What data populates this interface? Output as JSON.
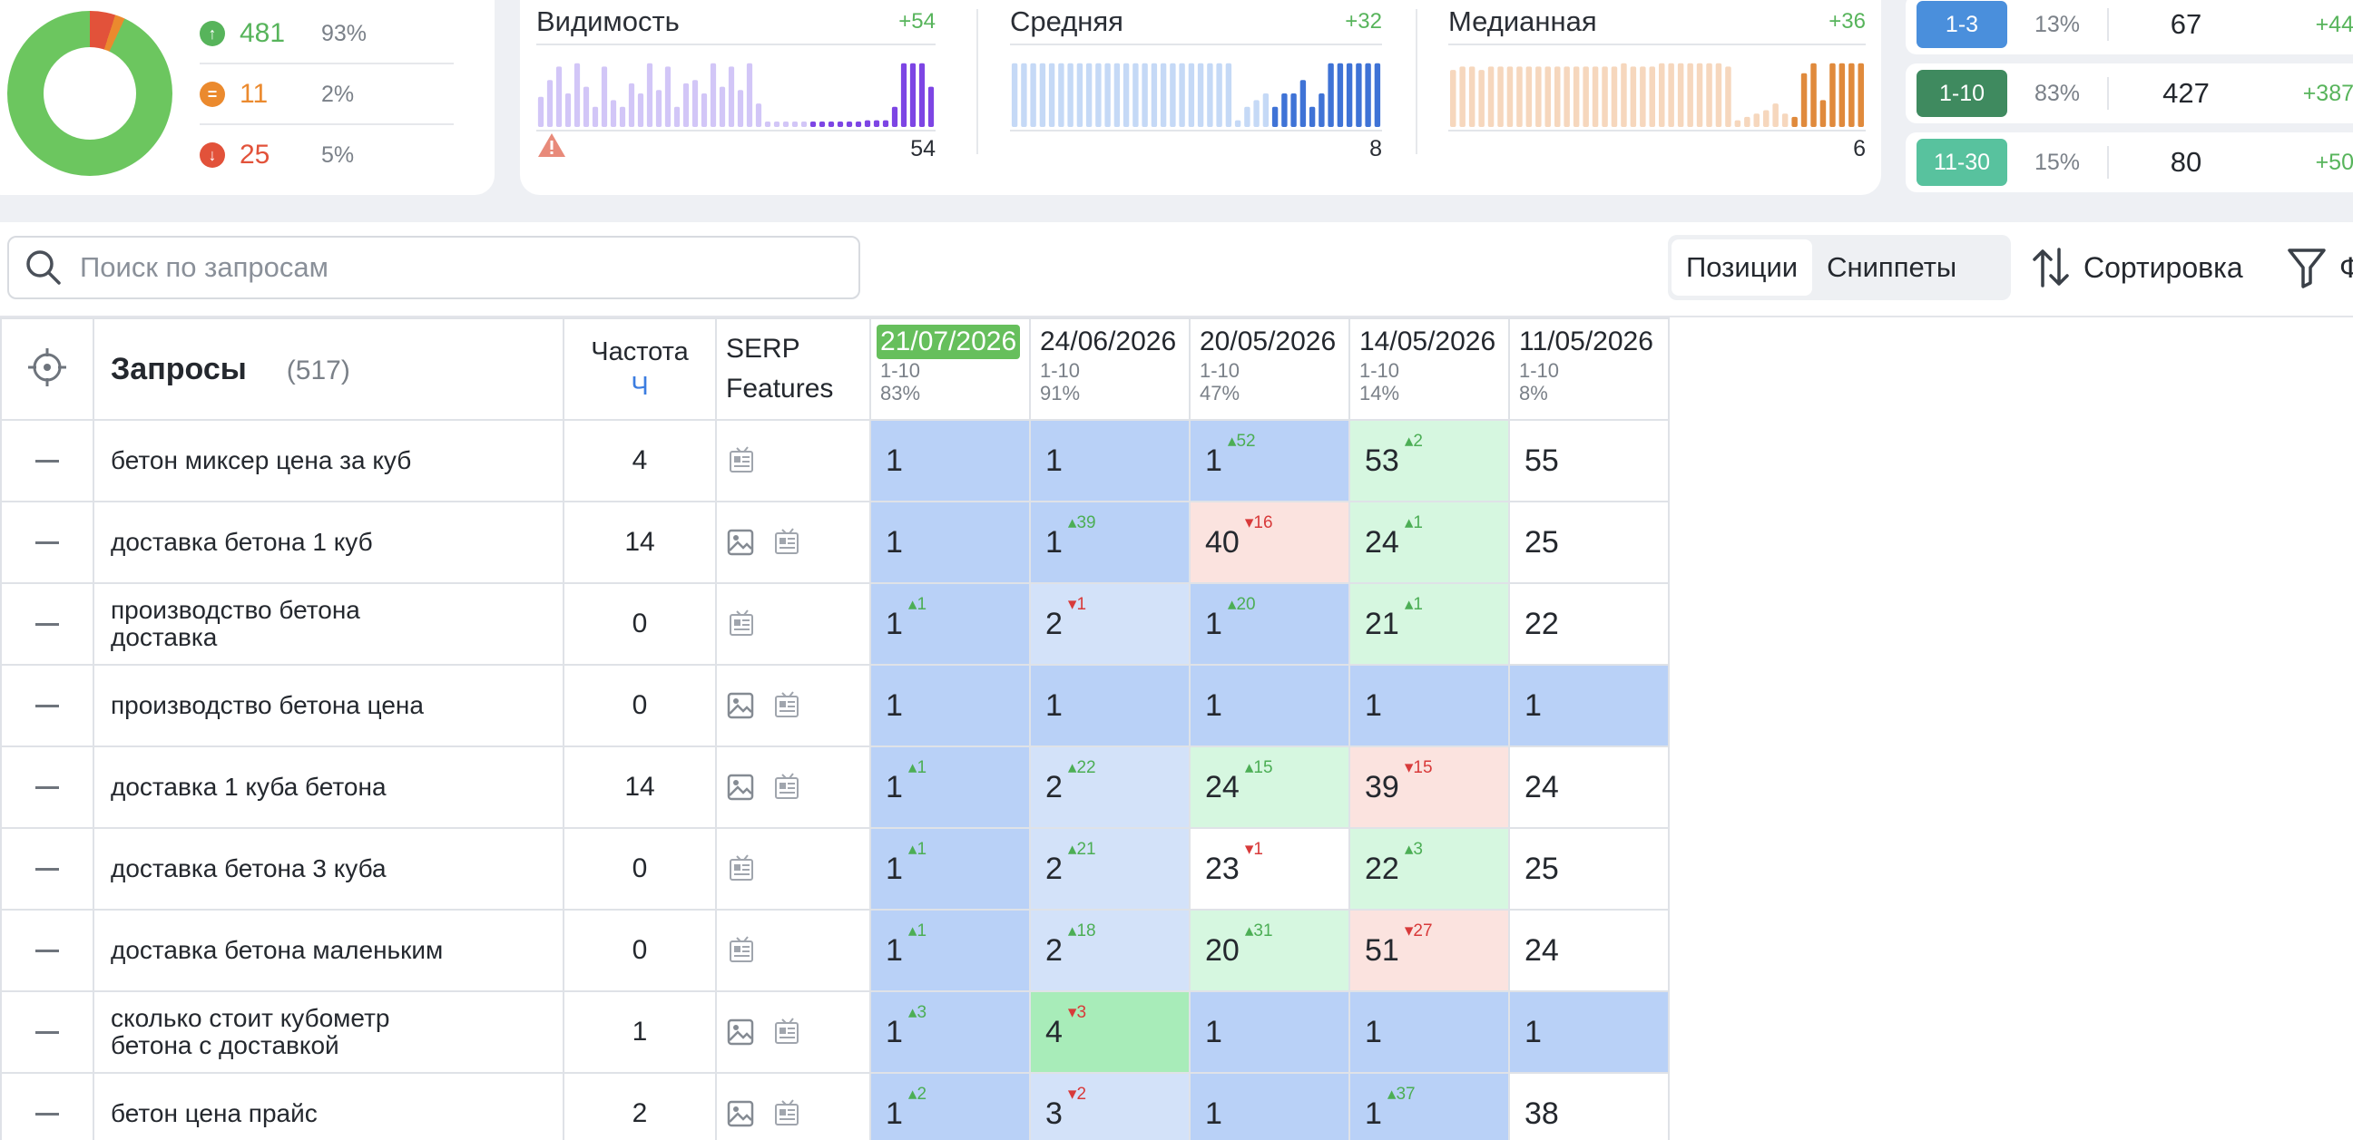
{
  "summary": {
    "stats": [
      {
        "icon": "arrow-up-icon",
        "value": "481",
        "pct": "93%",
        "color": "#57b45b"
      },
      {
        "icon": "equals-icon",
        "value": "11",
        "pct": "2%",
        "color": "#eb8a2e"
      },
      {
        "icon": "arrow-down-icon",
        "value": "25",
        "pct": "5%",
        "color": "#e2523a"
      }
    ],
    "donut": {
      "up": 481,
      "same": 11,
      "down": 25
    }
  },
  "metrics": [
    {
      "title": "Видимость",
      "delta": "+54",
      "value": "54",
      "color": "#d2c6f7",
      "accent": "#7d45e4",
      "warning": true,
      "bars": [
        0.45,
        0.7,
        0.9,
        0.5,
        0.95,
        0.6,
        0.3,
        0.9,
        0.4,
        0.3,
        0.65,
        0.5,
        0.95,
        0.55,
        0.9,
        0.3,
        0.65,
        0.7,
        0.5,
        0.95,
        0.6,
        0.9,
        0.55,
        0.95,
        0.35,
        0.05,
        0.05,
        0.05,
        0.05,
        0.05,
        0.05,
        0.05,
        0.06,
        0.06,
        0.06,
        0.06,
        0.1,
        0.1,
        0.1,
        0.3,
        0.95,
        0.95,
        0.95,
        0.6
      ],
      "accent_from": 30
    },
    {
      "title": "Средняя",
      "delta": "+32",
      "value": "8",
      "color": "#c5d9f6",
      "accent": "#3f73d6",
      "warning": false,
      "bars": [
        0.95,
        0.95,
        0.95,
        0.95,
        0.95,
        0.95,
        0.95,
        0.95,
        0.95,
        0.95,
        0.95,
        0.95,
        0.95,
        0.95,
        0.95,
        0.95,
        0.95,
        0.95,
        0.95,
        0.95,
        0.95,
        0.95,
        0.95,
        0.95,
        0.1,
        0.3,
        0.4,
        0.5,
        0.3,
        0.5,
        0.5,
        0.7,
        0.3,
        0.5,
        0.95,
        0.95,
        0.95,
        0.95,
        0.95,
        0.95
      ],
      "accent_from": 28
    },
    {
      "title": "Медианная",
      "delta": "+36",
      "value": "6",
      "color": "#f6d7bd",
      "accent": "#e08a3c",
      "warning": false,
      "bars": [
        0.85,
        0.9,
        0.9,
        0.85,
        0.9,
        0.9,
        0.9,
        0.9,
        0.9,
        0.9,
        0.9,
        0.9,
        0.9,
        0.9,
        0.9,
        0.9,
        0.9,
        0.9,
        0.95,
        0.9,
        0.9,
        0.9,
        0.95,
        0.95,
        0.95,
        0.95,
        0.95,
        0.95,
        0.95,
        0.9,
        0.1,
        0.15,
        0.2,
        0.25,
        0.35,
        0.2,
        0.15,
        0.8,
        0.95,
        0.4,
        0.95,
        0.95,
        0.95,
        0.95
      ],
      "accent_from": 36
    }
  ],
  "ranges": [
    {
      "label": "1-3",
      "pct": "13%",
      "value": "67",
      "delta": "+44",
      "color": "#4a8fdc"
    },
    {
      "label": "1-10",
      "pct": "83%",
      "value": "427",
      "delta": "+387",
      "color": "#3f8a5f"
    },
    {
      "label": "11-30",
      "pct": "15%",
      "value": "80",
      "delta": "+50",
      "color": "#58c29e"
    }
  ],
  "toolbar": {
    "search_placeholder": "Поиск по запросам",
    "seg_positions": "Позиции",
    "seg_snippets": "Сниппеты",
    "sort_label": "Сортировка",
    "filter_label": "Ф"
  },
  "table": {
    "queries_title": "Запросы",
    "queries_count": "(517)",
    "freq_title": "Частота",
    "freq_sub": "Ч",
    "serp_title_1": "SERP",
    "serp_title_2": "Features",
    "dates": [
      {
        "date": "21/07/2026",
        "range": "1-10",
        "pct": "83%",
        "current": true
      },
      {
        "date": "24/06/2026",
        "range": "1-10",
        "pct": "91%",
        "current": false
      },
      {
        "date": "20/05/2026",
        "range": "1-10",
        "pct": "47%",
        "current": false
      },
      {
        "date": "14/05/2026",
        "range": "1-10",
        "pct": "14%",
        "current": false
      },
      {
        "date": "11/05/2026",
        "range": "1-10",
        "pct": "8%",
        "current": false
      }
    ],
    "rows": [
      {
        "q1": "бетон миксер цена за куб",
        "q2": "",
        "freq": "4",
        "img": false,
        "cells": [
          [
            "1",
            "",
            ""
          ],
          [
            "1",
            "",
            ""
          ],
          [
            "1",
            "52",
            "up"
          ],
          [
            "53",
            "2",
            "up"
          ],
          [
            "55",
            "",
            ""
          ]
        ],
        "bg": [
          "b",
          "b",
          "b",
          "g",
          "w"
        ]
      },
      {
        "q1": "доставка бетона 1 куб",
        "q2": "",
        "freq": "14",
        "img": true,
        "cells": [
          [
            "1",
            "",
            ""
          ],
          [
            "1",
            "39",
            "up"
          ],
          [
            "40",
            "16",
            "dn"
          ],
          [
            "24",
            "1",
            "up"
          ],
          [
            "25",
            "",
            ""
          ]
        ],
        "bg": [
          "b",
          "b",
          "r",
          "g",
          "w"
        ]
      },
      {
        "q1": "производство бетона",
        "q2": "доставка",
        "freq": "0",
        "img": false,
        "cells": [
          [
            "1",
            "1",
            "up"
          ],
          [
            "2",
            "1",
            "dn"
          ],
          [
            "1",
            "20",
            "up"
          ],
          [
            "21",
            "1",
            "up"
          ],
          [
            "22",
            "",
            ""
          ]
        ],
        "bg": [
          "b",
          "lb",
          "b",
          "g",
          "w"
        ]
      },
      {
        "q1": "производство бетона цена",
        "q2": "",
        "freq": "0",
        "img": true,
        "cells": [
          [
            "1",
            "",
            ""
          ],
          [
            "1",
            "",
            ""
          ],
          [
            "1",
            "",
            ""
          ],
          [
            "1",
            "",
            ""
          ],
          [
            "1",
            "",
            ""
          ]
        ],
        "bg": [
          "b",
          "b",
          "b",
          "b",
          "b"
        ]
      },
      {
        "q1": "доставка 1 куба бетона",
        "q2": "",
        "freq": "14",
        "img": true,
        "cells": [
          [
            "1",
            "1",
            "up"
          ],
          [
            "2",
            "22",
            "up"
          ],
          [
            "24",
            "15",
            "up"
          ],
          [
            "39",
            "15",
            "dn"
          ],
          [
            "24",
            "",
            ""
          ]
        ],
        "bg": [
          "b",
          "lb",
          "g",
          "r",
          "w"
        ]
      },
      {
        "q1": "доставка бетона 3 куба",
        "q2": "",
        "freq": "0",
        "img": false,
        "cells": [
          [
            "1",
            "1",
            "up"
          ],
          [
            "2",
            "21",
            "up"
          ],
          [
            "23",
            "1",
            "dn"
          ],
          [
            "22",
            "3",
            "up"
          ],
          [
            "25",
            "",
            ""
          ]
        ],
        "bg": [
          "b",
          "lb",
          "w",
          "g",
          "w"
        ]
      },
      {
        "q1": "доставка бетона маленьким",
        "q2": "",
        "freq": "0",
        "img": false,
        "cells": [
          [
            "1",
            "1",
            "up"
          ],
          [
            "2",
            "18",
            "up"
          ],
          [
            "20",
            "31",
            "up"
          ],
          [
            "51",
            "27",
            "dn"
          ],
          [
            "24",
            "",
            ""
          ]
        ],
        "bg": [
          "b",
          "lb",
          "g",
          "r",
          "w"
        ]
      },
      {
        "q1": "сколько стоит кубометр",
        "q2": "бетона с доставкой",
        "freq": "1",
        "img": true,
        "cells": [
          [
            "1",
            "3",
            "up"
          ],
          [
            "4",
            "3",
            "dn"
          ],
          [
            "1",
            "",
            ""
          ],
          [
            "1",
            "",
            ""
          ],
          [
            "1",
            "",
            ""
          ]
        ],
        "bg": [
          "b",
          "gg",
          "b",
          "b",
          "b"
        ]
      },
      {
        "q1": "бетон цена прайс",
        "q2": "",
        "freq": "2",
        "img": true,
        "cells": [
          [
            "1",
            "2",
            "up"
          ],
          [
            "3",
            "2",
            "dn"
          ],
          [
            "1",
            "",
            ""
          ],
          [
            "1",
            "37",
            "up"
          ],
          [
            "38",
            "",
            ""
          ]
        ],
        "bg": [
          "b",
          "lb",
          "b",
          "b",
          "w"
        ]
      }
    ]
  }
}
